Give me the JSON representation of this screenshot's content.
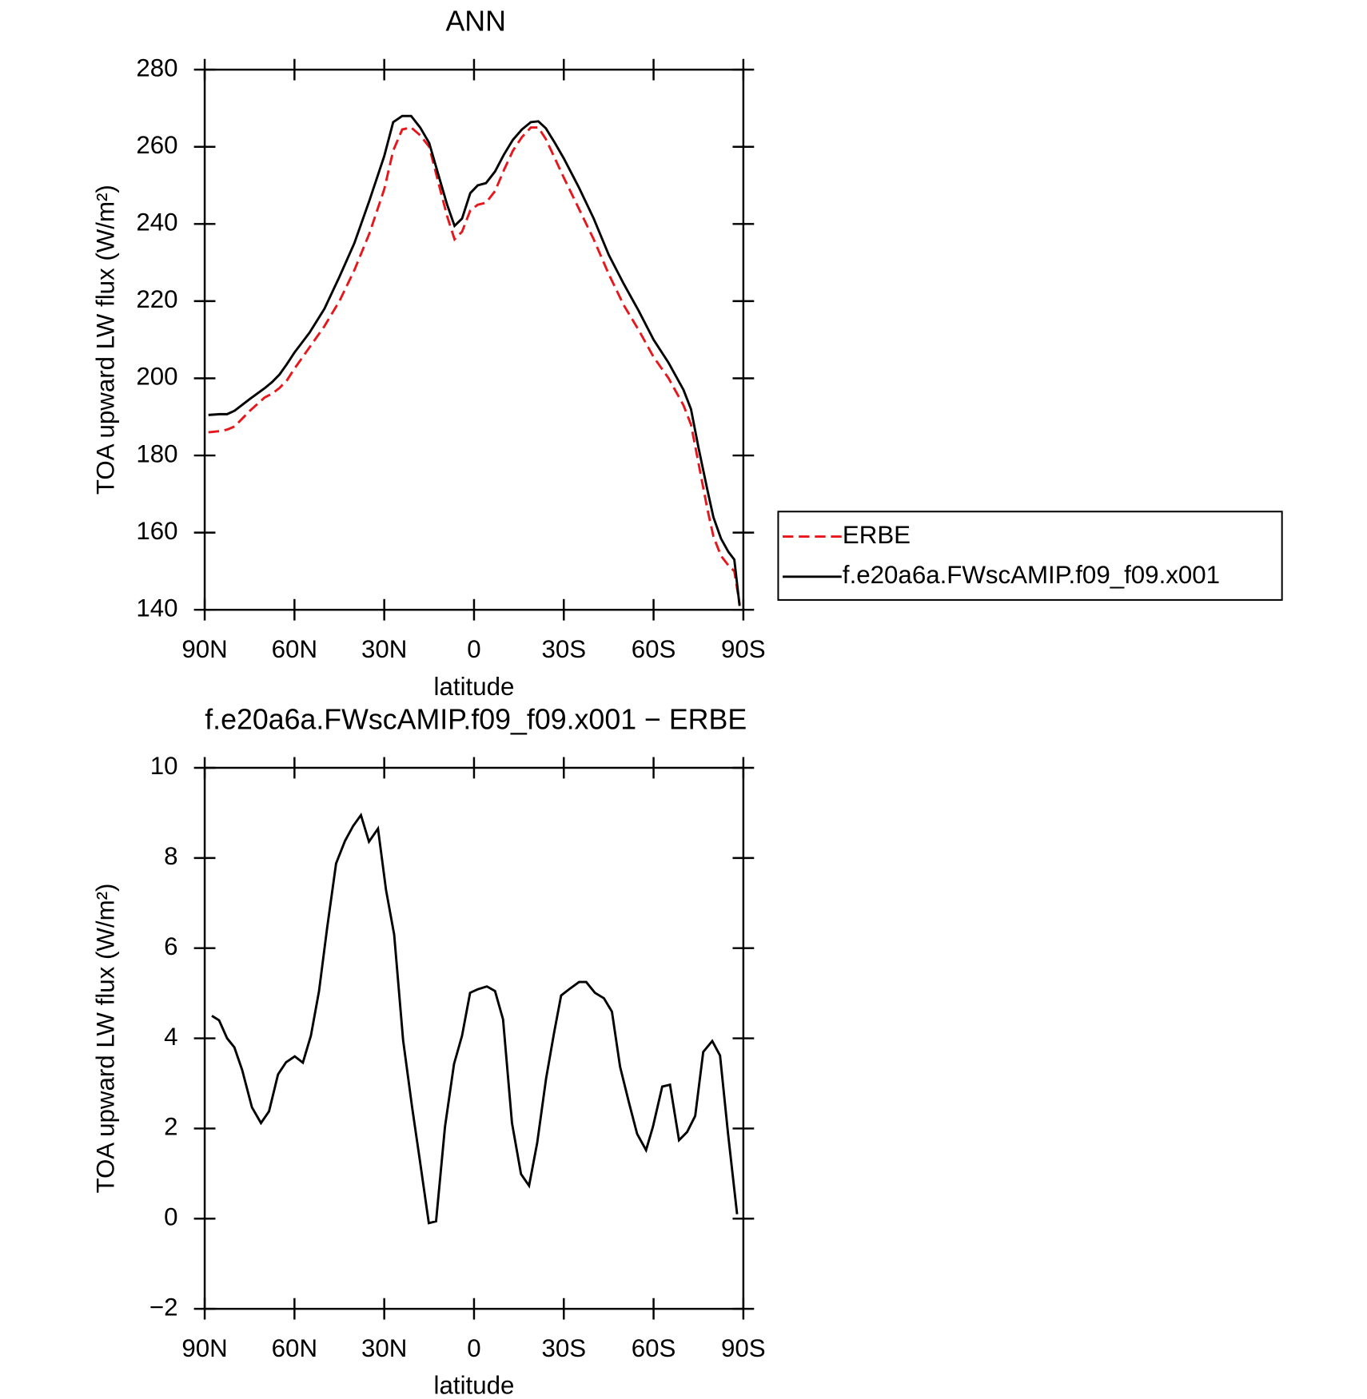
{
  "chart_data": [
    {
      "type": "line",
      "title": "ANN",
      "xlabel": "latitude",
      "ylabel": "TOA upward LW flux (W/m²)",
      "x": [
        88.75,
        85,
        82.5,
        80,
        75,
        70,
        67.5,
        65,
        62.5,
        60,
        55,
        50,
        45,
        40,
        35,
        30,
        27,
        24,
        21,
        18,
        15,
        12,
        9,
        6.5,
        4,
        1.25,
        -1.25,
        -4,
        -7,
        -10,
        -13,
        -16,
        -19,
        -21.5,
        -24,
        -27,
        -30,
        -35,
        -40,
        -45,
        -50,
        -55,
        -60,
        -65,
        -70,
        -72.5,
        -75,
        -78,
        -80,
        -82.5,
        -85,
        -87,
        -88.75
      ],
      "series": [
        {
          "name": "ERBE",
          "color": "#e8161b",
          "line_style": "dashed",
          "values": [
            186,
            186.3,
            186.7,
            187.5,
            191.5,
            195,
            196,
            197.5,
            199.5,
            202.5,
            208,
            213.5,
            220,
            228,
            237.5,
            249,
            259,
            264.5,
            265,
            263,
            260,
            251,
            242,
            236,
            238,
            243.5,
            245,
            245.5,
            248.5,
            254,
            259,
            262.5,
            265,
            265,
            262,
            257,
            252,
            244,
            236,
            227,
            219,
            212.5,
            205.5,
            200,
            193,
            188,
            178,
            166,
            159,
            154,
            151.5,
            150,
            141.5
          ]
        },
        {
          "name": "f.e20a6a.FWscAMIP.f09_f09.x001",
          "color": "#000000",
          "line_style": "solid",
          "values": [
            190.5,
            190.7,
            190.7,
            191.6,
            194.6,
            197.4,
            199,
            201,
            203.7,
            206.7,
            211.8,
            218,
            226.3,
            235,
            246,
            257.6,
            266.4,
            268,
            268,
            265,
            261,
            253,
            245,
            239.5,
            241.4,
            248,
            250,
            250.6,
            253.6,
            258,
            261.8,
            264.5,
            266.4,
            266.6,
            264.8,
            261,
            257,
            249.5,
            241.4,
            232,
            224.5,
            217.5,
            210,
            204,
            197,
            192,
            182,
            171,
            164,
            158.5,
            155,
            153,
            141
          ]
        }
      ],
      "xlim": [
        90,
        -90
      ],
      "xticks": [
        {
          "value": 90,
          "label": "90N"
        },
        {
          "value": 60,
          "label": "60N"
        },
        {
          "value": 30,
          "label": "30N"
        },
        0,
        {
          "value": -30,
          "label": "30S"
        },
        {
          "value": -60,
          "label": "60S"
        },
        {
          "value": -90,
          "label": "90S"
        }
      ],
      "ylim": [
        140,
        280
      ],
      "yticks": [
        140,
        160,
        180,
        200,
        220,
        240,
        260,
        280
      ],
      "legend": "right"
    },
    {
      "type": "line",
      "title": "f.e20a6a.FWscAMIP.f09_f09.x001 − ERBE",
      "xlabel": "latitude",
      "ylabel": "TOA upward LW flux (W/m²)",
      "x": [
        87.6,
        85.2,
        82.5,
        80.1,
        77.5,
        74.2,
        71.2,
        68.5,
        65.5,
        62.8,
        59.9,
        57.2,
        54.5,
        51.8,
        49.1,
        46.1,
        43.1,
        40.4,
        37.8,
        35.1,
        32.1,
        29.4,
        26.7,
        23.7,
        20.7,
        18.1,
        15.1,
        12.7,
        9.7,
        6.7,
        4,
        1.3,
        -1.3,
        -4.3,
        -7,
        -9.7,
        -12.7,
        -15.7,
        -18.4,
        -21.1,
        -24.1,
        -26.7,
        -29.1,
        -31.8,
        -35.1,
        -37.5,
        -40.4,
        -43.4,
        -46.1,
        -48.8,
        -51.8,
        -54.5,
        -57.5,
        -59.8,
        -62.9,
        -65.5,
        -68.5,
        -71.2,
        -73.9,
        -76.6,
        -79.6,
        -82.2,
        -84.9,
        -87.9
      ],
      "values": [
        4.5,
        4.4,
        4.0,
        3.8,
        3.3,
        2.47,
        2.12,
        2.38,
        3.2,
        3.47,
        3.6,
        3.46,
        4.06,
        5.05,
        6.44,
        7.88,
        8.38,
        8.71,
        8.95,
        8.36,
        8.65,
        7.29,
        6.3,
        3.96,
        2.47,
        1.29,
        -0.1,
        -0.06,
        2.04,
        3.43,
        4.06,
        5.01,
        5.09,
        5.15,
        5.05,
        4.42,
        2.12,
        0.99,
        0.73,
        1.68,
        3.11,
        4.1,
        4.95,
        5.09,
        5.25,
        5.25,
        5.01,
        4.89,
        4.59,
        3.37,
        2.57,
        1.88,
        1.52,
        2.04,
        2.93,
        2.97,
        1.74,
        1.92,
        2.28,
        3.7,
        3.94,
        3.62,
        1.88,
        0.1
      ],
      "color": "#000000",
      "xlim": [
        90,
        -90
      ],
      "xticks": [
        {
          "value": 90,
          "label": "90N"
        },
        {
          "value": 60,
          "label": "60N"
        },
        {
          "value": 30,
          "label": "30N"
        },
        0,
        {
          "value": -30,
          "label": "30S"
        },
        {
          "value": -60,
          "label": "60S"
        },
        {
          "value": -90,
          "label": "90S"
        }
      ],
      "ylim": [
        -2,
        10
      ],
      "yticks": [
        {
          "value": -2,
          "label": "−2"
        },
        0,
        2,
        4,
        6,
        8,
        10
      ]
    }
  ]
}
